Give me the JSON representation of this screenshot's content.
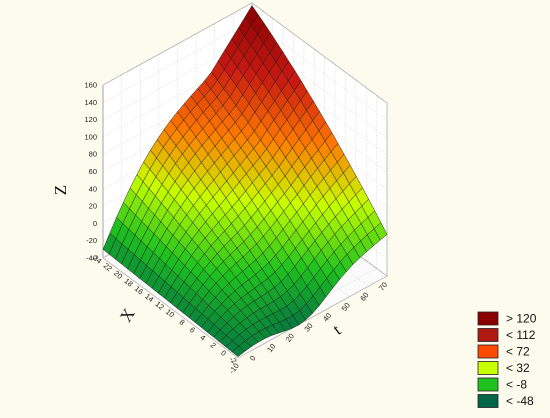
{
  "chart_data": {
    "type": "surface3d",
    "title": "",
    "axes": {
      "z": {
        "label": "Z",
        "range": [
          -40,
          160
        ],
        "ticks": [
          -40,
          -20,
          0,
          20,
          40,
          60,
          80,
          100,
          120,
          140,
          160
        ]
      },
      "x": {
        "label": "X",
        "range": [
          -2,
          24
        ],
        "ticks": [
          -2,
          0,
          2,
          4,
          6,
          8,
          10,
          12,
          14,
          16,
          18,
          20,
          22,
          24
        ]
      },
      "t": {
        "label": "t",
        "range": [
          -10,
          70
        ],
        "ticks": [
          -10,
          0,
          10,
          20,
          30,
          40,
          50,
          60,
          70
        ]
      }
    },
    "grid": true,
    "legend": {
      "placement": "bottom-right",
      "items": [
        {
          "label": "> 120",
          "color": "#8b0000"
        },
        {
          "label": "< 112",
          "color": "#b01812"
        },
        {
          "label": "< 72",
          "color": "#ff4a00"
        },
        {
          "label": "< 32",
          "color": "#c8ff00"
        },
        {
          "label": "< -8",
          "color": "#1fc21f"
        },
        {
          "label": "< -48",
          "color": "#006647"
        }
      ]
    },
    "surface": {
      "corners": [
        {
          "X": 24,
          "t": -10,
          "Z": -30
        },
        {
          "X": -2,
          "t": -10,
          "Z": -38
        },
        {
          "X": -2,
          "t": 70,
          "Z": 8
        },
        {
          "X": 24,
          "t": 70,
          "Z": 157
        }
      ]
    }
  }
}
